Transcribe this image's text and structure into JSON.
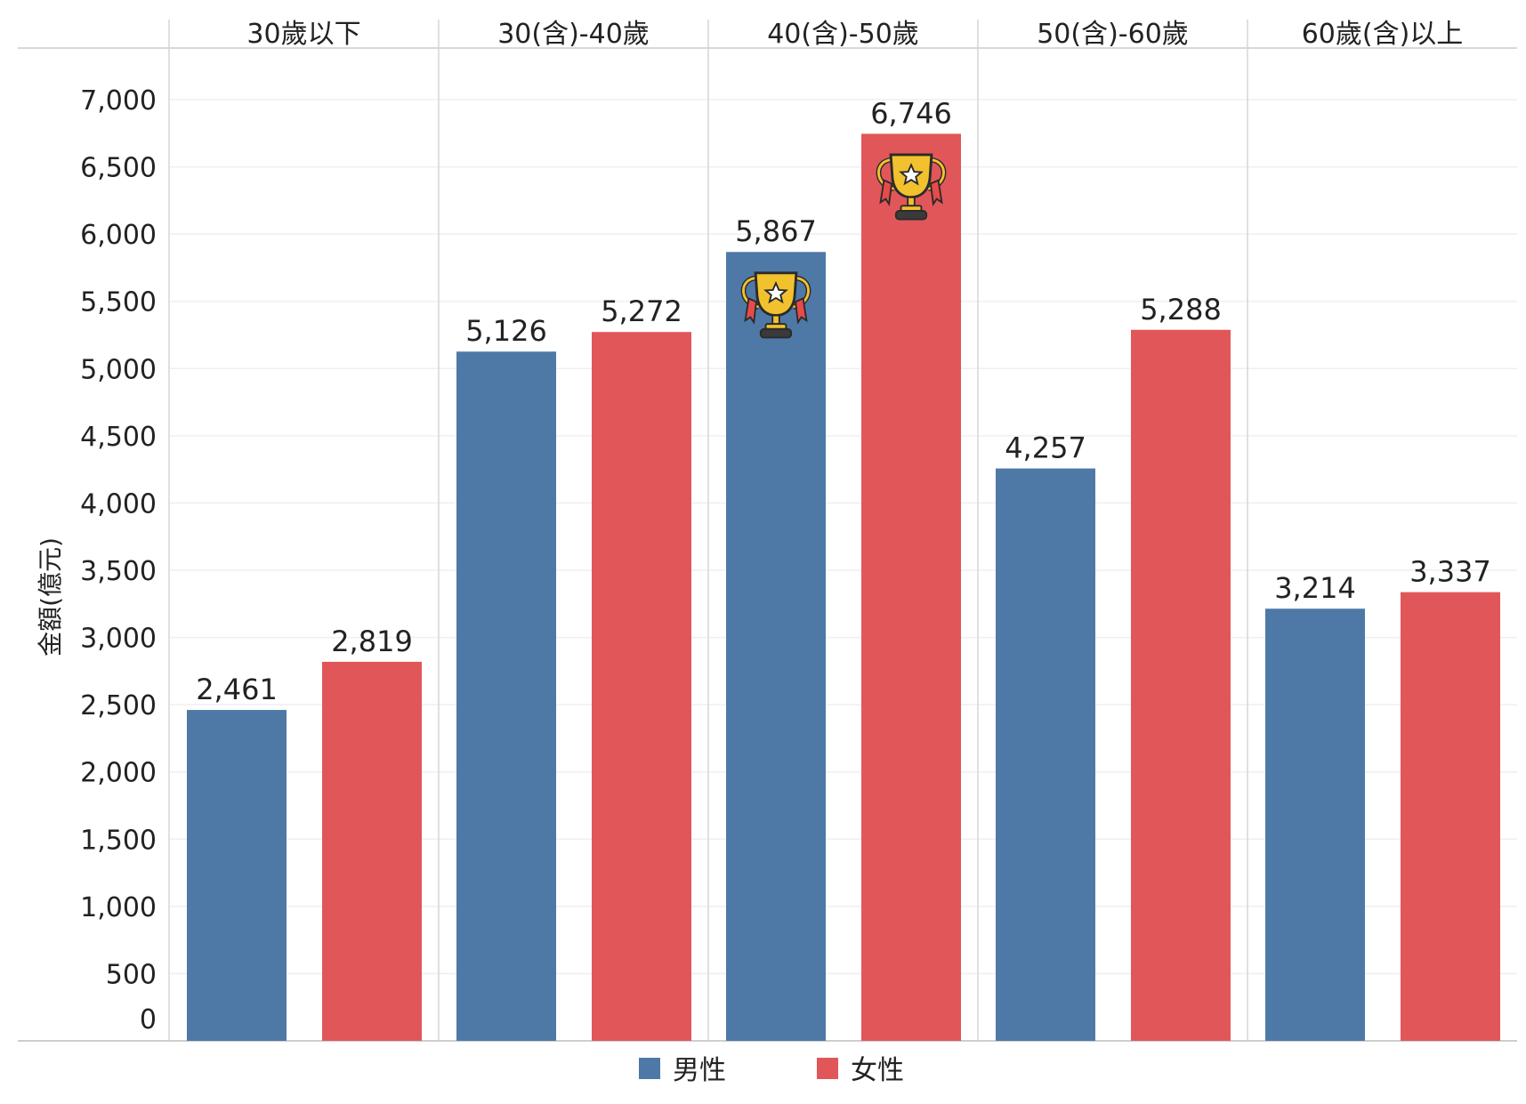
{
  "chart_data": {
    "type": "bar",
    "categories": [
      "30歲以下",
      "30(含)-40歲",
      "40(含)-50歲",
      "50(含)-60歲",
      "60歲(含)以上"
    ],
    "series": [
      {
        "name": "男性",
        "values": [
          2461,
          5126,
          5867,
          4257,
          3214
        ],
        "color": "#4e79a7"
      },
      {
        "name": "女性",
        "values": [
          2819,
          5272,
          6746,
          5288,
          3337
        ],
        "color": "#e15759"
      }
    ],
    "value_labels": {
      "男性": [
        "2,461",
        "5,126",
        "5,867",
        "4,257",
        "3,214"
      ],
      "女性": [
        "2,819",
        "5,272",
        "6,746",
        "5,288",
        "3,337"
      ]
    },
    "ylabel": "金額(億元)",
    "ylim": [
      0,
      7000
    ],
    "yticks": [
      0,
      500,
      1000,
      1500,
      2000,
      2500,
      3000,
      3500,
      4000,
      4500,
      5000,
      5500,
      6000,
      6500,
      7000
    ],
    "ytick_labels": [
      "0",
      "500",
      "1,000",
      "1,500",
      "2,000",
      "2,500",
      "3,000",
      "3,500",
      "4,000",
      "4,500",
      "5,000",
      "5,500",
      "6,000",
      "6,500",
      "7,000"
    ],
    "grid": true,
    "legend": "bottom-center",
    "highlight": {
      "icon": "trophy-icon",
      "markers": [
        {
          "series": 0,
          "category": 2
        },
        {
          "series": 1,
          "category": 2
        }
      ]
    }
  }
}
